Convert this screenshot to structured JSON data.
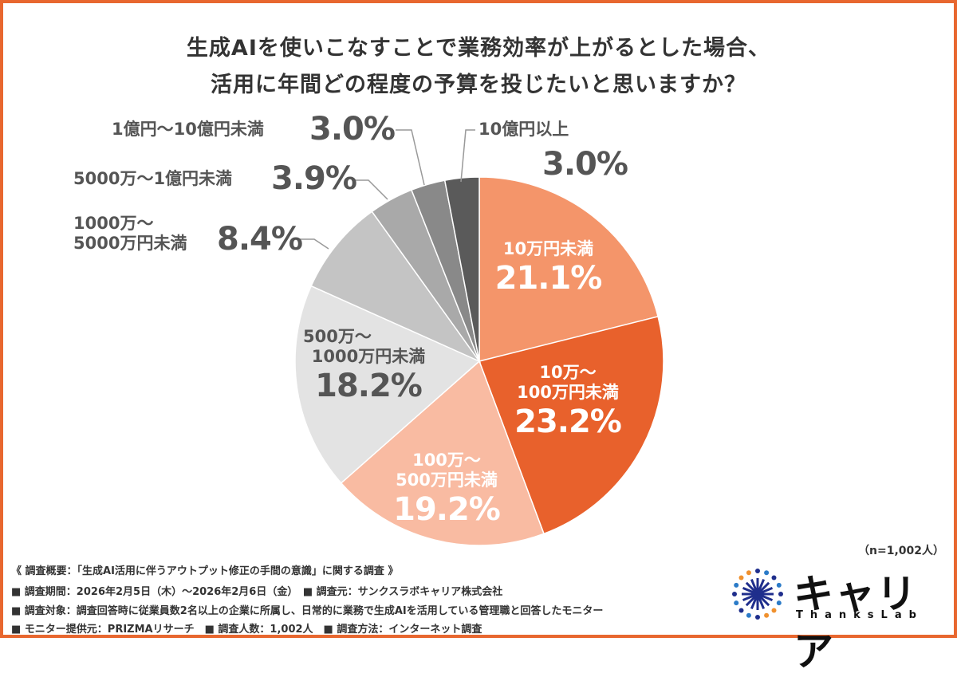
{
  "title_line1": "生成AIを使いこなすことで業務効率が上がるとした場合、",
  "title_line2": "活用に年間どの程度の予算を投じたいと思いますか？",
  "chart_data": {
    "type": "pie",
    "title": "生成AIを使いこなすことで業務効率が上がるとした場合、活用に年間どの程度の予算を投じたいと思いますか？",
    "start": "top",
    "direction": "clockwise",
    "slices": [
      {
        "label": "10万円未満",
        "value": 21.1,
        "pct": "21.1%",
        "color": "#F4956A"
      },
      {
        "label": "10万～100万円未満",
        "value": 23.2,
        "pct": "23.2%",
        "color": "#E8612C"
      },
      {
        "label": "100万～500万円未満",
        "value": 19.2,
        "pct": "19.2%",
        "color": "#F9BBA2"
      },
      {
        "label": "500万～1000万円未満",
        "value": 18.2,
        "pct": "18.2%",
        "color": "#E3E3E3"
      },
      {
        "label": "1000万～5000万円未満",
        "value": 8.4,
        "pct": "8.4%",
        "color": "#C4C4C4"
      },
      {
        "label": "5000万～1億円未満",
        "value": 3.9,
        "pct": "3.9%",
        "color": "#A9A9A9"
      },
      {
        "label": "1億円～10億円未満",
        "value": 3.0,
        "pct": "3.0%",
        "color": "#898989"
      },
      {
        "label": "10億円以上",
        "value": 3.0,
        "pct": "3.0%",
        "color": "#5A5A5A"
      }
    ],
    "labels_display": {
      "s0": "10万円未満",
      "s1a": "10万～",
      "s1b": "100万円未満",
      "s2a": "100万～",
      "s2b": "500万円未満",
      "s3a": "500万～",
      "s3b": "1000万円未満",
      "s4a": "1000万～",
      "s4b": "5000万円未満",
      "s5": "5000万～1億円未満",
      "s6": "1億円～10億円未満",
      "s7": "10億円以上"
    }
  },
  "n_label": "（n=1,002人）",
  "footer": [
    "《 調査概要：「生成AI活用に伴うアウトプット修正の手間の意識」に関する調査 》",
    "■ 調査期間：2026年2月5日（木）～2026年2月6日（金）　■ 調査元：サンクスラボキャリア株式会社",
    "■ 調査対象：調査回答時に従業員数2名以上の企業に所属し、日常的に業務で生成AIを活用している管理職と回答したモニター",
    "■ モニター提供元：PRIZMAリサーチ　■ 調査人数：1,002人　■ 調査方法：インターネット調査"
  ],
  "logo": {
    "main": "キャリア",
    "sub": "ThanksLab"
  },
  "border_color": "#E8672F"
}
